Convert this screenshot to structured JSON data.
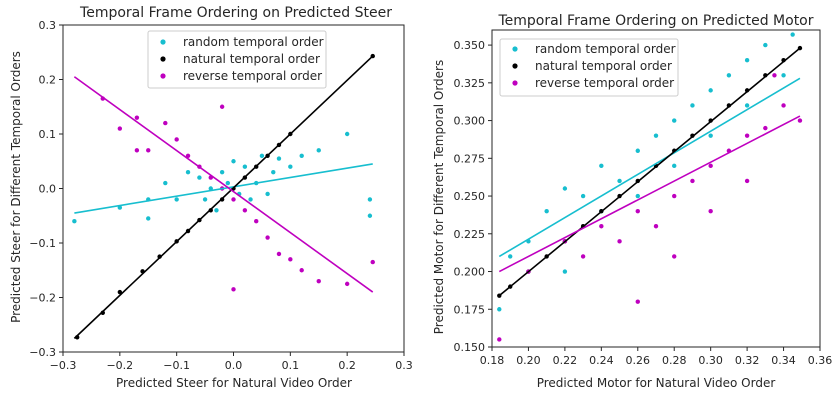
{
  "chart_data": [
    {
      "type": "scatter",
      "title": "Temporal Frame Ordering on Predicted Steer",
      "xlabel": "Predicted Steer for Natural Video Order",
      "ylabel": "Predicted Steer for Different Temporal Orders",
      "xlim": [
        -0.3,
        0.3
      ],
      "ylim": [
        -0.3,
        0.3
      ],
      "xticks": [
        -0.3,
        -0.2,
        -0.1,
        0.0,
        0.1,
        0.2,
        0.3
      ],
      "yticks": [
        -0.3,
        -0.2,
        -0.1,
        0.0,
        0.1,
        0.2,
        0.3
      ],
      "xtick_labels": [
        "−0.3",
        "−0.2",
        "−0.1",
        "0.0",
        "0.1",
        "0.2",
        "0.3"
      ],
      "ytick_labels": [
        "−0.3",
        "−0.2",
        "−0.1",
        "0.0",
        "0.1",
        "0.2",
        "0.3"
      ],
      "grid": false,
      "legend_position": "top-center",
      "series": [
        {
          "name": "random temporal order",
          "color": "#17becf",
          "fit": {
            "x": [
              -0.28,
              0.245
            ],
            "y": [
              -0.045,
              0.045
            ]
          },
          "points": [
            [
              -0.28,
              -0.06
            ],
            [
              -0.2,
              -0.035
            ],
            [
              -0.15,
              -0.055
            ],
            [
              -0.15,
              -0.02
            ],
            [
              -0.12,
              0.01
            ],
            [
              -0.1,
              -0.02
            ],
            [
              -0.08,
              0.03
            ],
            [
              -0.06,
              0.02
            ],
            [
              -0.05,
              -0.02
            ],
            [
              -0.03,
              -0.04
            ],
            [
              0.0,
              0.05
            ],
            [
              0.02,
              0.04
            ],
            [
              0.03,
              -0.02
            ],
            [
              0.05,
              0.06
            ],
            [
              0.07,
              0.03
            ],
            [
              0.08,
              0.055
            ],
            [
              0.1,
              0.04
            ],
            [
              0.12,
              0.06
            ],
            [
              0.15,
              0.07
            ],
            [
              0.2,
              0.1
            ],
            [
              0.24,
              -0.02
            ],
            [
              0.24,
              -0.05
            ],
            [
              -0.01,
              0.01
            ],
            [
              0.01,
              -0.01
            ],
            [
              0.04,
              0.01
            ],
            [
              0.06,
              -0.01
            ],
            [
              -0.02,
              0.03
            ],
            [
              -0.04,
              0.0
            ]
          ]
        },
        {
          "name": "natural temporal order",
          "color": "#000000",
          "fit": {
            "x": [
              -0.28,
              0.245
            ],
            "y": [
              -0.275,
              0.243
            ]
          },
          "points": [
            [
              -0.275,
              -0.273
            ],
            [
              -0.23,
              -0.228
            ],
            [
              -0.2,
              -0.19
            ],
            [
              -0.16,
              -0.152
            ],
            [
              -0.13,
              -0.125
            ],
            [
              -0.1,
              -0.097
            ],
            [
              -0.08,
              -0.078
            ],
            [
              -0.06,
              -0.058
            ],
            [
              -0.04,
              -0.04
            ],
            [
              -0.02,
              -0.02
            ],
            [
              0.0,
              0.0
            ],
            [
              0.02,
              0.02
            ],
            [
              0.04,
              0.04
            ],
            [
              0.06,
              0.06
            ],
            [
              0.08,
              0.08
            ],
            [
              0.1,
              0.1
            ],
            [
              0.245,
              0.243
            ]
          ]
        },
        {
          "name": "reverse temporal order",
          "color": "#bf00bf",
          "fit": {
            "x": [
              -0.28,
              0.245
            ],
            "y": [
              0.205,
              -0.19
            ]
          },
          "points": [
            [
              -0.23,
              0.165
            ],
            [
              -0.2,
              0.11
            ],
            [
              -0.17,
              0.07
            ],
            [
              -0.15,
              0.07
            ],
            [
              -0.12,
              0.12
            ],
            [
              -0.1,
              0.09
            ],
            [
              -0.08,
              0.06
            ],
            [
              -0.06,
              0.04
            ],
            [
              -0.04,
              0.02
            ],
            [
              -0.02,
              0.0
            ],
            [
              0.0,
              -0.02
            ],
            [
              0.02,
              -0.04
            ],
            [
              0.04,
              -0.06
            ],
            [
              0.06,
              -0.09
            ],
            [
              0.08,
              -0.12
            ],
            [
              0.1,
              -0.13
            ],
            [
              0.12,
              -0.15
            ],
            [
              0.15,
              -0.17
            ],
            [
              0.2,
              -0.175
            ],
            [
              0.245,
              -0.135
            ],
            [
              0.0,
              -0.185
            ],
            [
              -0.02,
              0.15
            ],
            [
              -0.17,
              0.13
            ]
          ]
        }
      ]
    },
    {
      "type": "scatter",
      "title": "Temporal Frame Ordering on Predicted Motor",
      "xlabel": "Predicted Motor for Natural Video Order",
      "ylabel": "Predicted Motor for Different Temporal Orders",
      "xlim": [
        0.18,
        0.36
      ],
      "ylim": [
        0.15,
        0.36
      ],
      "xticks": [
        0.18,
        0.2,
        0.22,
        0.24,
        0.26,
        0.28,
        0.3,
        0.32,
        0.34,
        0.36
      ],
      "yticks": [
        0.15,
        0.175,
        0.2,
        0.225,
        0.25,
        0.275,
        0.3,
        0.325,
        0.35
      ],
      "xtick_labels": [
        "0.18",
        "0.20",
        "0.22",
        "0.24",
        "0.26",
        "0.28",
        "0.30",
        "0.32",
        "0.34",
        "0.36"
      ],
      "ytick_labels": [
        "0.150",
        "0.175",
        "0.200",
        "0.225",
        "0.250",
        "0.275",
        "0.300",
        "0.325",
        "0.350"
      ],
      "grid": false,
      "legend_position": "top-left",
      "series": [
        {
          "name": "random temporal order",
          "color": "#17becf",
          "fit": {
            "x": [
              0.184,
              0.349
            ],
            "y": [
              0.21,
              0.328
            ]
          },
          "points": [
            [
              0.184,
              0.175
            ],
            [
              0.19,
              0.21
            ],
            [
              0.2,
              0.22
            ],
            [
              0.21,
              0.24
            ],
            [
              0.22,
              0.255
            ],
            [
              0.23,
              0.25
            ],
            [
              0.24,
              0.27
            ],
            [
              0.25,
              0.26
            ],
            [
              0.26,
              0.28
            ],
            [
              0.27,
              0.29
            ],
            [
              0.28,
              0.3
            ],
            [
              0.29,
              0.31
            ],
            [
              0.3,
              0.32
            ],
            [
              0.31,
              0.33
            ],
            [
              0.32,
              0.34
            ],
            [
              0.33,
              0.35
            ],
            [
              0.345,
              0.357
            ],
            [
              0.24,
              0.24
            ],
            [
              0.28,
              0.27
            ],
            [
              0.22,
              0.2
            ],
            [
              0.3,
              0.29
            ],
            [
              0.26,
              0.25
            ],
            [
              0.34,
              0.33
            ],
            [
              0.32,
              0.31
            ]
          ]
        },
        {
          "name": "natural temporal order",
          "color": "#000000",
          "fit": {
            "x": [
              0.184,
              0.349
            ],
            "y": [
              0.184,
              0.348
            ]
          },
          "points": [
            [
              0.184,
              0.184
            ],
            [
              0.19,
              0.19
            ],
            [
              0.2,
              0.2
            ],
            [
              0.21,
              0.21
            ],
            [
              0.22,
              0.22
            ],
            [
              0.23,
              0.23
            ],
            [
              0.24,
              0.24
            ],
            [
              0.25,
              0.25
            ],
            [
              0.26,
              0.26
            ],
            [
              0.27,
              0.27
            ],
            [
              0.28,
              0.28
            ],
            [
              0.29,
              0.29
            ],
            [
              0.3,
              0.3
            ],
            [
              0.31,
              0.31
            ],
            [
              0.32,
              0.32
            ],
            [
              0.33,
              0.33
            ],
            [
              0.34,
              0.34
            ],
            [
              0.349,
              0.348
            ]
          ]
        },
        {
          "name": "reverse temporal order",
          "color": "#bf00bf",
          "fit": {
            "x": [
              0.184,
              0.349
            ],
            "y": [
              0.2,
              0.303
            ]
          },
          "points": [
            [
              0.184,
              0.155
            ],
            [
              0.2,
              0.2
            ],
            [
              0.22,
              0.22
            ],
            [
              0.24,
              0.23
            ],
            [
              0.26,
              0.24
            ],
            [
              0.27,
              0.23
            ],
            [
              0.28,
              0.25
            ],
            [
              0.29,
              0.26
            ],
            [
              0.3,
              0.27
            ],
            [
              0.31,
              0.28
            ],
            [
              0.32,
              0.29
            ],
            [
              0.33,
              0.295
            ],
            [
              0.34,
              0.31
            ],
            [
              0.349,
              0.3
            ],
            [
              0.23,
              0.21
            ],
            [
              0.25,
              0.22
            ],
            [
              0.26,
              0.18
            ],
            [
              0.3,
              0.24
            ],
            [
              0.32,
              0.26
            ],
            [
              0.28,
              0.21
            ],
            [
              0.335,
              0.33
            ]
          ]
        }
      ]
    }
  ]
}
